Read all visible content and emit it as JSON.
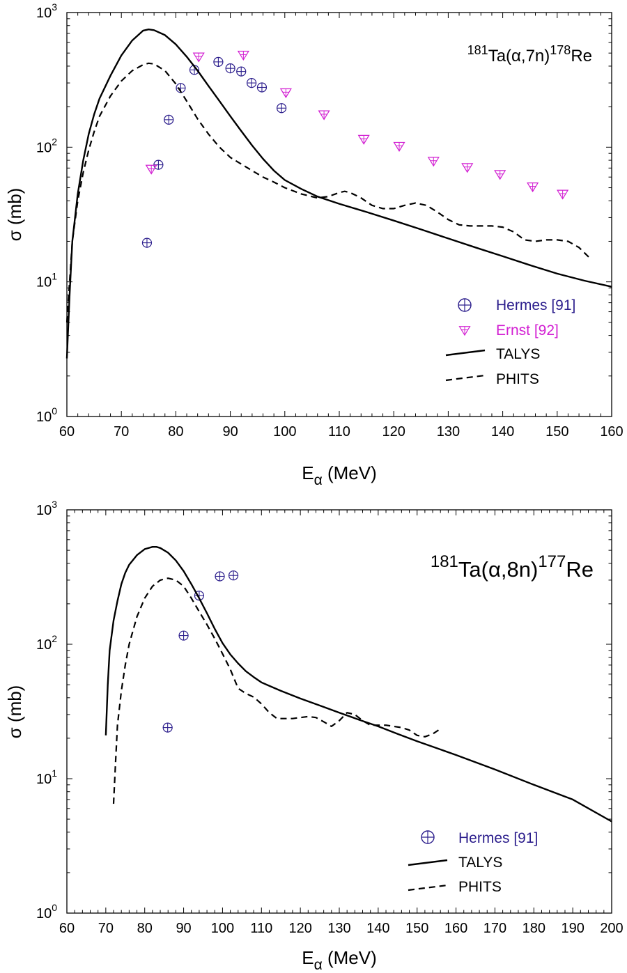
{
  "chart_data": [
    {
      "type": "line",
      "reaction": {
        "pre": "181",
        "mid": "Ta(α,7n)",
        "post": "178",
        "tail": "Re"
      },
      "xlabel": {
        "main": "E",
        "sub": "α",
        "unit": " (MeV)"
      },
      "ylabel": "σ (mb)",
      "xlim": [
        60,
        160
      ],
      "ylim": [
        1,
        1000
      ],
      "x_ticks": [
        "60",
        "70",
        "80",
        "90",
        "100",
        "110",
        "120",
        "130",
        "140",
        "150",
        "160"
      ],
      "y_ticks": [
        {
          "base": "10",
          "exp": "0"
        },
        {
          "base": "10",
          "exp": "1"
        },
        {
          "base": "10",
          "exp": "2"
        },
        {
          "base": "10",
          "exp": "3"
        }
      ],
      "series": [
        {
          "name": "Hermes [91]",
          "kind": "scatter",
          "marker": "circle-plus",
          "color": "#2b1d8c",
          "x": [
            74.7,
            76.8,
            78.7,
            80.9,
            83.4,
            87.8,
            90.0,
            92.0,
            93.9,
            95.8,
            99.4
          ],
          "y": [
            19.5,
            74,
            160,
            275,
            375,
            430,
            385,
            365,
            300,
            278,
            195
          ]
        },
        {
          "name": "Ernst [92]",
          "kind": "scatter",
          "marker": "triangle-down-plus",
          "color": "#d21fd2",
          "x": [
            75.5,
            84.2,
            92.4,
            100.2,
            107.2,
            114.5,
            121.0,
            127.3,
            133.5,
            139.5,
            145.5,
            151.0
          ],
          "y": [
            69,
            470,
            485,
            255,
            175,
            115,
            102,
            79,
            71,
            63,
            51,
            45
          ]
        },
        {
          "name": "TALYS",
          "kind": "line",
          "dash": "solid",
          "color": "#000000",
          "x": [
            60,
            60.5,
            61,
            62,
            63,
            64,
            65,
            66,
            68,
            70,
            72,
            74,
            75,
            76,
            78,
            80,
            82,
            84,
            86,
            88,
            90,
            92,
            94,
            96,
            98,
            100,
            103,
            106,
            110,
            115,
            120,
            125,
            130,
            135,
            140,
            145,
            150,
            155,
            160
          ],
          "y": [
            2.7,
            8,
            20,
            45,
            80,
            125,
            175,
            230,
            340,
            480,
            620,
            735,
            750,
            740,
            680,
            580,
            470,
            370,
            285,
            220,
            170,
            132,
            103,
            82,
            67,
            57,
            49,
            43,
            38,
            33,
            28.5,
            24.5,
            21,
            18,
            15.5,
            13.3,
            11.5,
            10.2,
            9.2
          ]
        },
        {
          "name": "PHITS",
          "kind": "line",
          "dash": "dashed",
          "color": "#000000",
          "x": [
            60,
            60.5,
            61,
            62,
            63,
            64,
            65,
            66,
            68,
            70,
            72,
            74,
            75,
            76,
            78,
            80,
            82,
            84,
            86,
            88,
            90,
            92,
            94,
            96,
            98,
            100,
            103,
            106,
            108,
            110,
            111,
            112,
            114,
            116,
            118,
            120,
            122,
            124,
            126,
            128,
            130,
            132,
            134,
            136,
            138,
            140,
            142,
            144,
            146,
            148,
            150,
            152,
            154,
            156
          ],
          "y": [
            5,
            10,
            20,
            40,
            65,
            95,
            130,
            170,
            240,
            310,
            370,
            410,
            420,
            415,
            370,
            295,
            220,
            162,
            125,
            100,
            84,
            75,
            67,
            60,
            55,
            50,
            45,
            42,
            43,
            46,
            47,
            46,
            42,
            37,
            35,
            35,
            37,
            38.5,
            37,
            33,
            29,
            26.5,
            26,
            26,
            26,
            25.5,
            23.5,
            20.5,
            20,
            20.5,
            20.5,
            20,
            18,
            15
          ]
        }
      ]
    },
    {
      "type": "line",
      "reaction": {
        "pre": "181",
        "mid": "Ta(α,8n)",
        "post": "177",
        "tail": "Re"
      },
      "xlabel": {
        "main": "E",
        "sub": "α",
        "unit": " (MeV)"
      },
      "ylabel": "σ (mb)",
      "xlim": [
        60,
        200
      ],
      "ylim": [
        1,
        1000
      ],
      "x_ticks": [
        "60",
        "70",
        "80",
        "90",
        "100",
        "110",
        "120",
        "130",
        "140",
        "150",
        "160",
        "170",
        "180",
        "190",
        "200"
      ],
      "y_ticks": [
        {
          "base": "10",
          "exp": "0"
        },
        {
          "base": "10",
          "exp": "1"
        },
        {
          "base": "10",
          "exp": "2"
        },
        {
          "base": "10",
          "exp": "3"
        }
      ],
      "series": [
        {
          "name": "Hermes [91]",
          "kind": "scatter",
          "marker": "circle-plus",
          "color": "#2b1d8c",
          "x": [
            85.9,
            90.0,
            94.0,
            99.3,
            102.8
          ],
          "y": [
            24,
            116,
            230,
            320,
            325
          ]
        },
        {
          "name": "TALYS",
          "kind": "line",
          "dash": "solid",
          "color": "#000000",
          "x": [
            70,
            70.5,
            71,
            72,
            73,
            74,
            75,
            76,
            78,
            80,
            82,
            83,
            84,
            86,
            88,
            90,
            92,
            94,
            96,
            98,
            100,
            102,
            104,
            106,
            108,
            110,
            115,
            120,
            125,
            130,
            135,
            140,
            145,
            150,
            160,
            170,
            180,
            190,
            200
          ],
          "y": [
            21,
            50,
            90,
            150,
            210,
            280,
            340,
            390,
            460,
            510,
            530,
            530,
            520,
            480,
            420,
            350,
            280,
            220,
            170,
            130,
            102,
            84,
            72,
            63,
            57,
            52,
            45,
            39.5,
            35,
            31,
            27.5,
            24.5,
            21.5,
            19,
            15,
            11.7,
            9,
            7,
            4.8
          ]
        },
        {
          "name": "PHITS",
          "kind": "line",
          "dash": "dashed",
          "color": "#000000",
          "x": [
            72,
            72.5,
            73,
            74,
            75,
            76,
            78,
            80,
            82,
            84,
            86,
            88,
            90,
            92,
            94,
            96,
            98,
            100,
            102,
            104,
            106,
            108,
            110,
            112,
            114,
            116,
            118,
            120,
            122,
            124,
            126,
            128,
            130,
            132,
            134,
            136,
            138,
            140,
            142,
            144,
            146,
            148,
            150,
            152,
            154,
            156
          ],
          "y": [
            6.5,
            13,
            25,
            45,
            70,
            100,
            160,
            220,
            270,
            300,
            310,
            300,
            270,
            220,
            175,
            140,
            110,
            85,
            65,
            47,
            43,
            40.5,
            36,
            31,
            28,
            28,
            28,
            28.5,
            29,
            28.5,
            26.5,
            24.5,
            27,
            31,
            30,
            27,
            25,
            25,
            25,
            24.5,
            24,
            23,
            21,
            20.5,
            21.5,
            23.5
          ]
        }
      ]
    }
  ]
}
